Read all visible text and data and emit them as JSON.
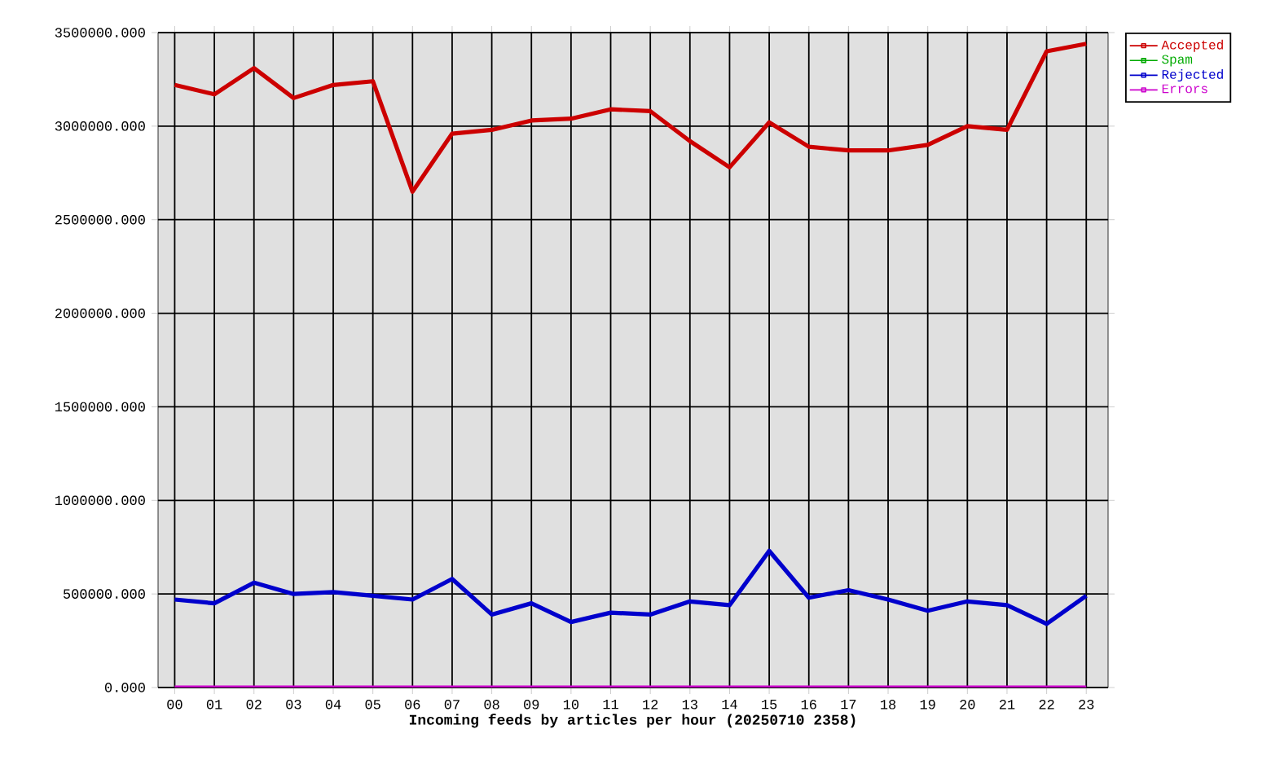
{
  "chart_data": {
    "type": "line",
    "xlabel": "Incoming feeds by articles per hour (20250710 2358)",
    "categories": [
      "00",
      "01",
      "02",
      "03",
      "04",
      "05",
      "06",
      "07",
      "08",
      "09",
      "10",
      "11",
      "12",
      "13",
      "14",
      "15",
      "16",
      "17",
      "18",
      "19",
      "20",
      "21",
      "22",
      "23"
    ],
    "series": [
      {
        "name": "Accepted",
        "color": "#cc0000",
        "values": [
          3220000,
          3170000,
          3310000,
          3150000,
          3220000,
          3240000,
          2650000,
          2960000,
          2980000,
          3030000,
          3040000,
          3090000,
          3080000,
          2920000,
          2780000,
          3020000,
          2890000,
          2870000,
          2870000,
          2900000,
          3000000,
          2980000,
          3400000,
          3440000
        ]
      },
      {
        "name": "Spam",
        "color": "#00aa00",
        "values": [
          null,
          null,
          null,
          null,
          null,
          null,
          null,
          null,
          null,
          null,
          null,
          null,
          null,
          null,
          null,
          null,
          null,
          null,
          null,
          null,
          null,
          null,
          null,
          null
        ]
      },
      {
        "name": "Rejected",
        "color": "#0000cc",
        "values": [
          470000,
          450000,
          560000,
          500000,
          510000,
          490000,
          470000,
          580000,
          390000,
          450000,
          350000,
          400000,
          390000,
          460000,
          440000,
          730000,
          480000,
          520000,
          470000,
          410000,
          460000,
          440000,
          340000,
          490000
        ]
      },
      {
        "name": "Errors",
        "color": "#cc00cc",
        "values": [
          0,
          0,
          0,
          0,
          0,
          0,
          0,
          0,
          0,
          0,
          0,
          0,
          0,
          0,
          0,
          0,
          0,
          0,
          0,
          0,
          0,
          0,
          0,
          0
        ]
      }
    ],
    "ylim": [
      0,
      3500000
    ],
    "yticks": [
      {
        "value": 0,
        "label": "0.000"
      },
      {
        "value": 500000,
        "label": "500000.000"
      },
      {
        "value": 1000000,
        "label": "1000000.000"
      },
      {
        "value": 1500000,
        "label": "1500000.000"
      },
      {
        "value": 2000000,
        "label": "2000000.000"
      },
      {
        "value": 2500000,
        "label": "2500000.000"
      },
      {
        "value": 3000000,
        "label": "3000000.000"
      },
      {
        "value": 3500000,
        "label": "3500000.000"
      }
    ],
    "grid": true,
    "legend": "top right",
    "marker": "none",
    "line_style": "solid"
  }
}
